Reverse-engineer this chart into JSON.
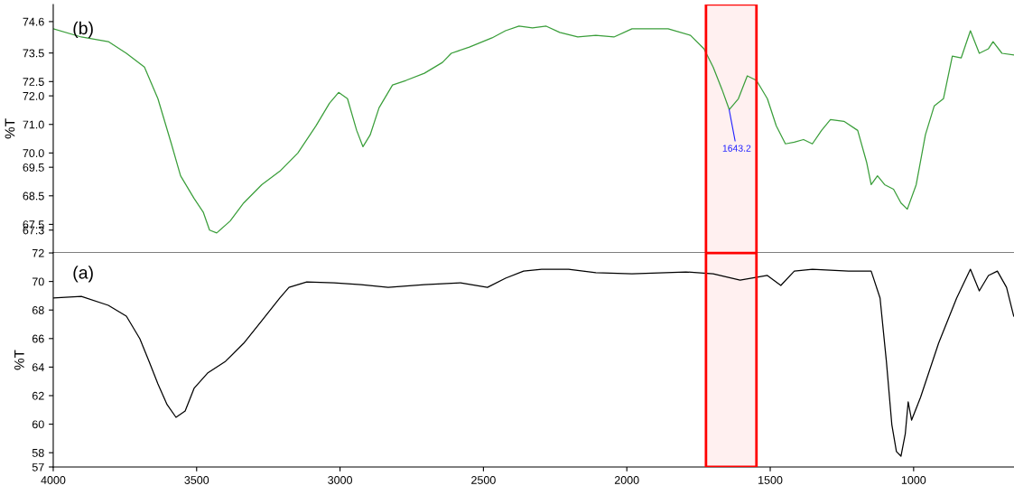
{
  "chart_data": [
    {
      "type": "line",
      "ylabel": "%T",
      "annotations": [
        "(b)",
        {
          "text": "1643.2",
          "x": 1643.2,
          "y": 71.52
        }
      ],
      "xlim": [
        4000,
        650
      ],
      "ylim": [
        66.5,
        75.2
      ],
      "yticks": [
        74.6,
        73.5,
        72.5,
        {
          "value": 72,
          "label": "72.0"
        },
        {
          "value": 71,
          "label": "71.0"
        },
        {
          "value": 70,
          "label": "70.0"
        },
        69.5,
        68.5,
        67.5,
        67.3
      ],
      "tick_labels": "y",
      "grid": false,
      "legend": false,
      "bands": [
        {
          "axis": "x",
          "from": 1724,
          "to": 1548,
          "color": "#ff0000"
        }
      ],
      "series": [
        {
          "color": "#3a9e3a",
          "x": [
            4000,
            3902,
            3808,
            3745,
            3682,
            3635,
            3588,
            3556,
            3509,
            3477,
            3455,
            3430,
            3383,
            3336,
            3273,
            3210,
            3147,
            3084,
            3037,
            3005,
            2974,
            2942,
            2920,
            2895,
            2864,
            2817,
            2770,
            2706,
            2643,
            2612,
            2549,
            2470,
            2423,
            2376,
            2329,
            2281,
            2234,
            2171,
            2108,
            2045,
            1982,
            1856,
            1778,
            1731,
            1699,
            1668,
            1643,
            1611,
            1580,
            1548,
            1510,
            1479,
            1447,
            1416,
            1384,
            1353,
            1321,
            1290,
            1243,
            1195,
            1164,
            1148,
            1126,
            1101,
            1070,
            1044,
            1022,
            991,
            959,
            928,
            896,
            865,
            834,
            802,
            771,
            739,
            723,
            692,
            651
          ],
          "values": [
            74.35,
            74.06,
            73.9,
            73.49,
            73.01,
            71.9,
            70.32,
            69.2,
            68.41,
            67.93,
            67.3,
            67.2,
            67.62,
            68.25,
            68.89,
            69.36,
            70.0,
            70.95,
            71.74,
            72.12,
            71.9,
            70.79,
            70.22,
            70.63,
            71.58,
            72.38,
            72.54,
            72.79,
            73.17,
            73.49,
            73.71,
            74.03,
            74.28,
            74.44,
            74.38,
            74.44,
            74.22,
            74.06,
            74.12,
            74.06,
            74.35,
            74.35,
            74.12,
            73.65,
            73.01,
            72.22,
            71.52,
            71.9,
            72.7,
            72.54,
            71.9,
            70.95,
            70.32,
            70.38,
            70.47,
            70.32,
            70.79,
            71.17,
            71.11,
            70.79,
            69.68,
            68.89,
            69.2,
            68.89,
            68.73,
            68.25,
            68.03,
            68.89,
            70.63,
            71.65,
            71.9,
            73.39,
            73.33,
            74.28,
            73.49,
            73.65,
            73.9,
            73.49,
            73.43
          ]
        }
      ]
    },
    {
      "type": "line",
      "ylabel": "%T",
      "annotations": [
        "(a)"
      ],
      "xlim": [
        4000,
        650
      ],
      "ylim": [
        57,
        72
      ],
      "xticks": [
        4000,
        3500,
        3000,
        2500,
        2000,
        1500,
        1000
      ],
      "yticks": [
        72,
        70,
        68,
        66,
        64,
        62,
        60,
        58,
        57
      ],
      "grid": false,
      "legend": false,
      "bands": [
        {
          "axis": "x",
          "from": 1724,
          "to": 1548,
          "color": "#ff0000"
        }
      ],
      "series": [
        {
          "color": "#000000",
          "x": [
            4000,
            3902,
            3808,
            3745,
            3698,
            3666,
            3635,
            3603,
            3572,
            3540,
            3509,
            3462,
            3399,
            3336,
            3273,
            3210,
            3178,
            3116,
            3021,
            2927,
            2832,
            2706,
            2580,
            2486,
            2423,
            2360,
            2297,
            2203,
            2108,
            1982,
            1794,
            1699,
            1605,
            1510,
            1463,
            1416,
            1353,
            1227,
            1148,
            1117,
            1095,
            1076,
            1060,
            1044,
            1029,
            1019,
            1007,
            976,
            913,
            850,
            802,
            771,
            739,
            708,
            676,
            651
          ],
          "values": [
            68.84,
            68.96,
            68.33,
            67.57,
            65.99,
            64.41,
            62.82,
            61.37,
            60.48,
            60.92,
            62.51,
            63.58,
            64.41,
            65.67,
            67.25,
            68.84,
            69.59,
            69.97,
            69.91,
            69.78,
            69.59,
            69.78,
            69.91,
            69.59,
            70.23,
            70.73,
            70.86,
            70.86,
            70.61,
            70.54,
            70.67,
            70.54,
            70.1,
            70.42,
            69.72,
            70.73,
            70.86,
            70.73,
            70.73,
            68.84,
            64.41,
            59.97,
            58.08,
            57.76,
            59.34,
            61.56,
            60.29,
            61.87,
            65.67,
            68.84,
            70.86,
            69.34,
            70.42,
            70.73,
            69.59,
            67.57
          ]
        }
      ]
    }
  ]
}
